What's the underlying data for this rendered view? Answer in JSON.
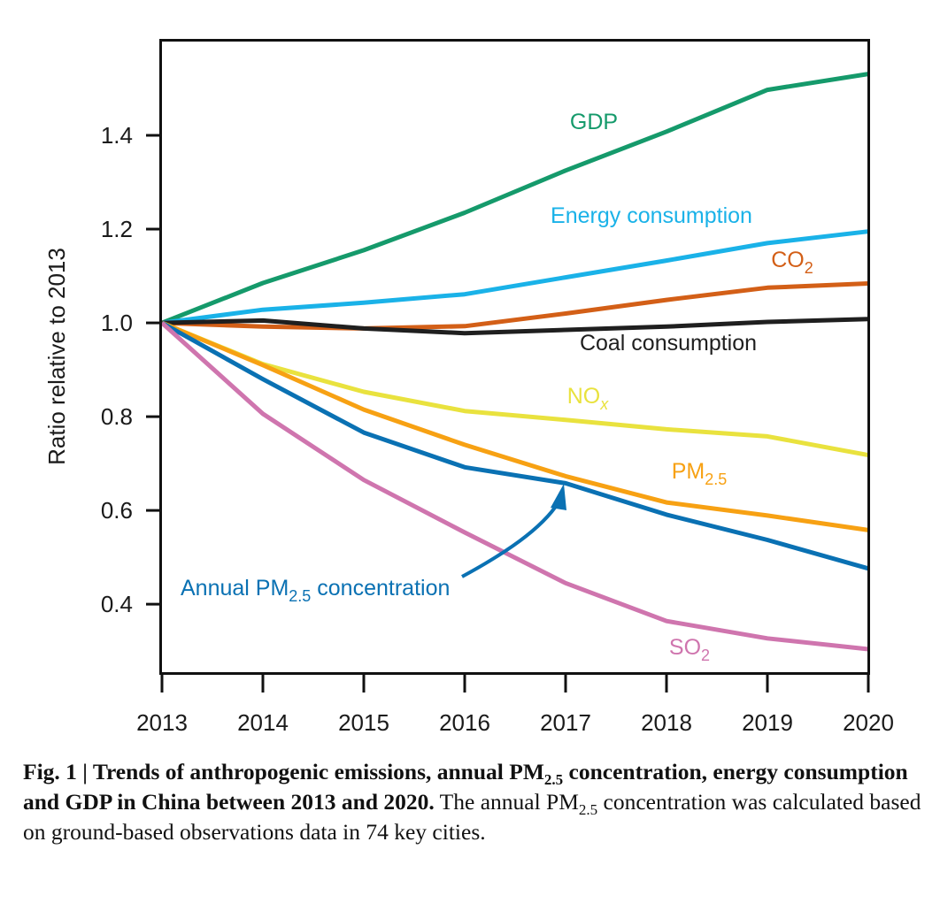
{
  "chart_data": {
    "type": "line",
    "title": "",
    "xlabel": "",
    "ylabel": "Ratio relative to 2013",
    "x": [
      2013,
      2014,
      2015,
      2016,
      2017,
      2018,
      2019,
      2020
    ],
    "x_tick_labels": [
      "2013",
      "2014",
      "2015",
      "2016",
      "2017",
      "2018",
      "2019",
      "2020"
    ],
    "xlim": [
      2013,
      2020
    ],
    "ylim": [
      0.255,
      1.6
    ],
    "y_ticks": [
      0.4,
      0.6,
      0.8,
      1.0,
      1.2,
      1.4
    ],
    "y_tick_labels": [
      "0.4",
      "0.6",
      "0.8",
      "1.0",
      "1.2",
      "1.4"
    ],
    "grid": false,
    "legend": "inline labels",
    "series": [
      {
        "key": "gdp",
        "name": "GDP",
        "color": "#159a6b",
        "values": [
          1.0,
          1.085,
          1.155,
          1.235,
          1.325,
          1.408,
          1.497,
          1.531
        ]
      },
      {
        "key": "energy",
        "name": "Energy consumption",
        "color": "#1ab2e8",
        "values": [
          1.0,
          1.028,
          1.043,
          1.061,
          1.097,
          1.133,
          1.17,
          1.195
        ]
      },
      {
        "key": "co2",
        "name": "CO",
        "sub": "2",
        "color": "#d35f17",
        "values": [
          1.0,
          0.992,
          0.988,
          0.993,
          1.02,
          1.049,
          1.075,
          1.084
        ]
      },
      {
        "key": "coal",
        "name": "Coal consumption",
        "color": "#1f1f1f",
        "values": [
          1.0,
          1.005,
          0.988,
          0.978,
          0.985,
          0.992,
          1.002,
          1.008
        ]
      },
      {
        "key": "nox",
        "name": "NO",
        "sub": "x",
        "color": "#e9e23e",
        "values": [
          1.0,
          0.912,
          0.853,
          0.812,
          0.793,
          0.773,
          0.758,
          0.718
        ]
      },
      {
        "key": "pm25",
        "name": "PM",
        "sub": "2.5",
        "color": "#f7a113",
        "values": [
          1.0,
          0.91,
          0.815,
          0.74,
          0.673,
          0.617,
          0.589,
          0.558
        ]
      },
      {
        "key": "annual_pm25",
        "name": "Annual PM",
        "sub": "2.5",
        "name_suffix": " concentration",
        "color": "#0a71b3",
        "values": [
          1.0,
          0.88,
          0.766,
          0.692,
          0.658,
          0.591,
          0.537,
          0.476
        ]
      },
      {
        "key": "so2",
        "name": "SO",
        "sub": "2",
        "color": "#cf75ae",
        "values": [
          1.0,
          0.806,
          0.665,
          0.553,
          0.445,
          0.364,
          0.327,
          0.304
        ]
      }
    ]
  },
  "caption": {
    "fig_label": "Fig. 1",
    "separator": " | ",
    "bold_pre": "Trends of anthropogenic emissions, annual PM",
    "bold_sub": "2.5",
    "bold_post": " concentration, energy consumption and GDP in China between 2013 and 2020.",
    "text_pre": " The annual PM",
    "text_sub": "2.5",
    "text_post": " concentration was calculated based on ground-based observations data in 74 key cities."
  }
}
